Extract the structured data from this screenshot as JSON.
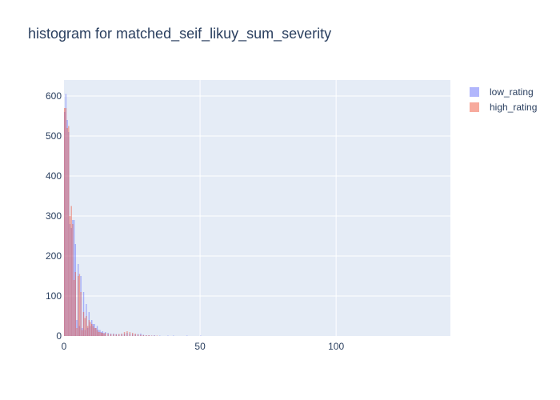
{
  "chart_data": {
    "type": "bar",
    "title": "histogram for matched_seif_likuy_sum_severity",
    "xlabel": "",
    "ylabel": "",
    "xlim": [
      0,
      142
    ],
    "ylim": [
      0,
      640
    ],
    "x_ticks": [
      0,
      50,
      100
    ],
    "y_ticks": [
      0,
      100,
      200,
      300,
      400,
      500,
      600
    ],
    "grid": true,
    "legend_position": "top-right",
    "bin_width": 0.5,
    "barmode": "overlay",
    "series": [
      {
        "name": "low_rating",
        "color": "#636efa",
        "points": [
          [
            0,
            560
          ],
          [
            0.5,
            605
          ],
          [
            1,
            540
          ],
          [
            1.5,
            510
          ],
          [
            2,
            280
          ],
          [
            2.5,
            270
          ],
          [
            3,
            290
          ],
          [
            3.5,
            290
          ],
          [
            4,
            230
          ],
          [
            4.5,
            40
          ],
          [
            5,
            180
          ],
          [
            5.5,
            25
          ],
          [
            6,
            150
          ],
          [
            6.5,
            20
          ],
          [
            7,
            110
          ],
          [
            7.5,
            15
          ],
          [
            8,
            80
          ],
          [
            8.5,
            20
          ],
          [
            9,
            60
          ],
          [
            9.5,
            25
          ],
          [
            10,
            40
          ],
          [
            10.5,
            30
          ],
          [
            11,
            30
          ],
          [
            11.5,
            20
          ],
          [
            12,
            25
          ],
          [
            12.5,
            15
          ],
          [
            13,
            15
          ],
          [
            13.5,
            10
          ],
          [
            14,
            12
          ],
          [
            14.5,
            8
          ],
          [
            15,
            10
          ],
          [
            16,
            8
          ],
          [
            17,
            6
          ],
          [
            18,
            6
          ],
          [
            19,
            5
          ],
          [
            20,
            4
          ],
          [
            21,
            5
          ],
          [
            22,
            6
          ],
          [
            23,
            8
          ],
          [
            24,
            6
          ],
          [
            25,
            5
          ],
          [
            26,
            4
          ],
          [
            27,
            5
          ],
          [
            28,
            6
          ],
          [
            29,
            3
          ],
          [
            30,
            2
          ],
          [
            31,
            2
          ],
          [
            32,
            1
          ],
          [
            33,
            2
          ],
          [
            35,
            1
          ],
          [
            38,
            1
          ],
          [
            40,
            1
          ],
          [
            45,
            1
          ],
          [
            50,
            1
          ]
        ]
      },
      {
        "name": "high_rating",
        "color": "#ef553b",
        "points": [
          [
            0,
            570
          ],
          [
            0.5,
            570
          ],
          [
            1,
            520
          ],
          [
            1.5,
            525
          ],
          [
            2,
            300
          ],
          [
            2.5,
            325
          ],
          [
            3,
            280
          ],
          [
            3.5,
            140
          ],
          [
            4,
            160
          ],
          [
            4.5,
            20
          ],
          [
            5,
            150
          ],
          [
            5.5,
            155
          ],
          [
            6,
            110
          ],
          [
            6.5,
            15
          ],
          [
            7,
            60
          ],
          [
            7.5,
            45
          ],
          [
            8,
            50
          ],
          [
            8.5,
            25
          ],
          [
            9,
            40
          ],
          [
            9.5,
            35
          ],
          [
            10,
            30
          ],
          [
            10.5,
            25
          ],
          [
            11,
            20
          ],
          [
            11.5,
            20
          ],
          [
            12,
            15
          ],
          [
            12.5,
            10
          ],
          [
            13,
            10
          ],
          [
            13.5,
            8
          ],
          [
            14,
            8
          ],
          [
            14.5,
            6
          ],
          [
            15,
            8
          ],
          [
            16,
            6
          ],
          [
            17,
            5
          ],
          [
            18,
            5
          ],
          [
            19,
            4
          ],
          [
            20,
            5
          ],
          [
            21,
            6
          ],
          [
            22,
            10
          ],
          [
            23,
            12
          ],
          [
            24,
            10
          ],
          [
            25,
            8
          ],
          [
            26,
            6
          ],
          [
            27,
            4
          ],
          [
            28,
            3
          ],
          [
            29,
            2
          ],
          [
            30,
            2
          ],
          [
            31,
            2
          ],
          [
            32,
            1
          ],
          [
            33,
            1
          ],
          [
            34,
            1
          ]
        ]
      }
    ]
  }
}
